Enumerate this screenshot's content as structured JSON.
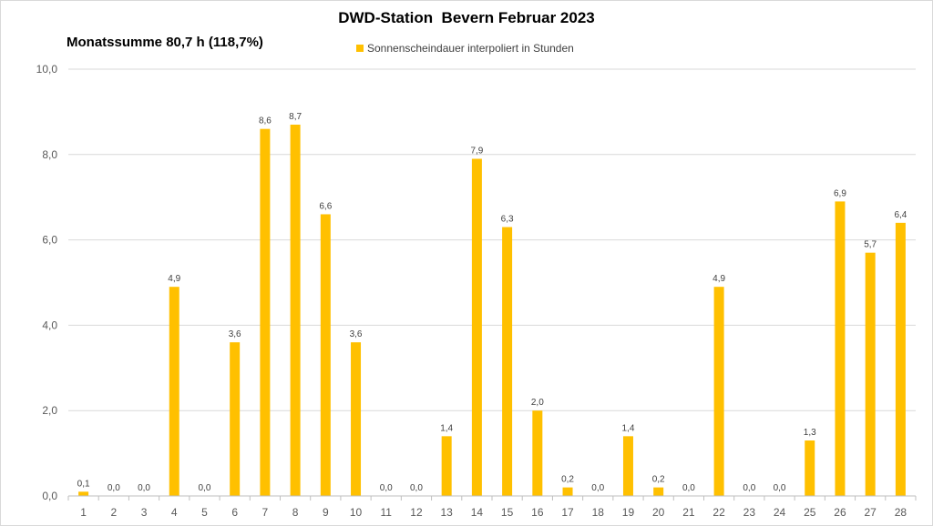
{
  "chart_data": {
    "type": "bar",
    "title": "DWD-Station  Bevern Februar 2023",
    "subtitle": "Monatssumme 80,7 h (118,7%)",
    "legend": {
      "label": "Sonnenscheindauer interpoliert in Stunden",
      "placement": "top-center"
    },
    "series_color": "#FFC000",
    "categories": [
      "1",
      "2",
      "3",
      "4",
      "5",
      "6",
      "7",
      "8",
      "9",
      "10",
      "11",
      "12",
      "13",
      "14",
      "15",
      "16",
      "17",
      "18",
      "19",
      "20",
      "21",
      "22",
      "23",
      "24",
      "25",
      "26",
      "27",
      "28"
    ],
    "values": [
      0.1,
      0.0,
      0.0,
      4.9,
      0.0,
      3.6,
      8.6,
      8.7,
      6.6,
      3.6,
      0.0,
      0.0,
      1.4,
      7.9,
      6.3,
      2.0,
      0.2,
      0.0,
      1.4,
      0.2,
      0.0,
      4.9,
      0.0,
      0.0,
      1.3,
      6.9,
      5.7,
      6.4
    ],
    "data_labels": [
      "0,1",
      "0,0",
      "0,0",
      "4,9",
      "0,0",
      "3,6",
      "8,6",
      "8,7",
      "6,6",
      "3,6",
      "0,0",
      "0,0",
      "1,4",
      "7,9",
      "6,3",
      "2,0",
      "0,2",
      "0,0",
      "1,4",
      "0,2",
      "0,0",
      "4,9",
      "0,0",
      "0,0",
      "1,3",
      "6,9",
      "5,7",
      "6,4"
    ],
    "ylim": [
      0,
      10
    ],
    "yticks": [
      0,
      2,
      4,
      6,
      8,
      10
    ],
    "ytick_labels": [
      "0,0",
      "2,0",
      "4,0",
      "6,0",
      "8,0",
      "10,0"
    ],
    "grid": true,
    "grid_color": "#D9D9D9",
    "axis_color": "#BFBFBF"
  }
}
